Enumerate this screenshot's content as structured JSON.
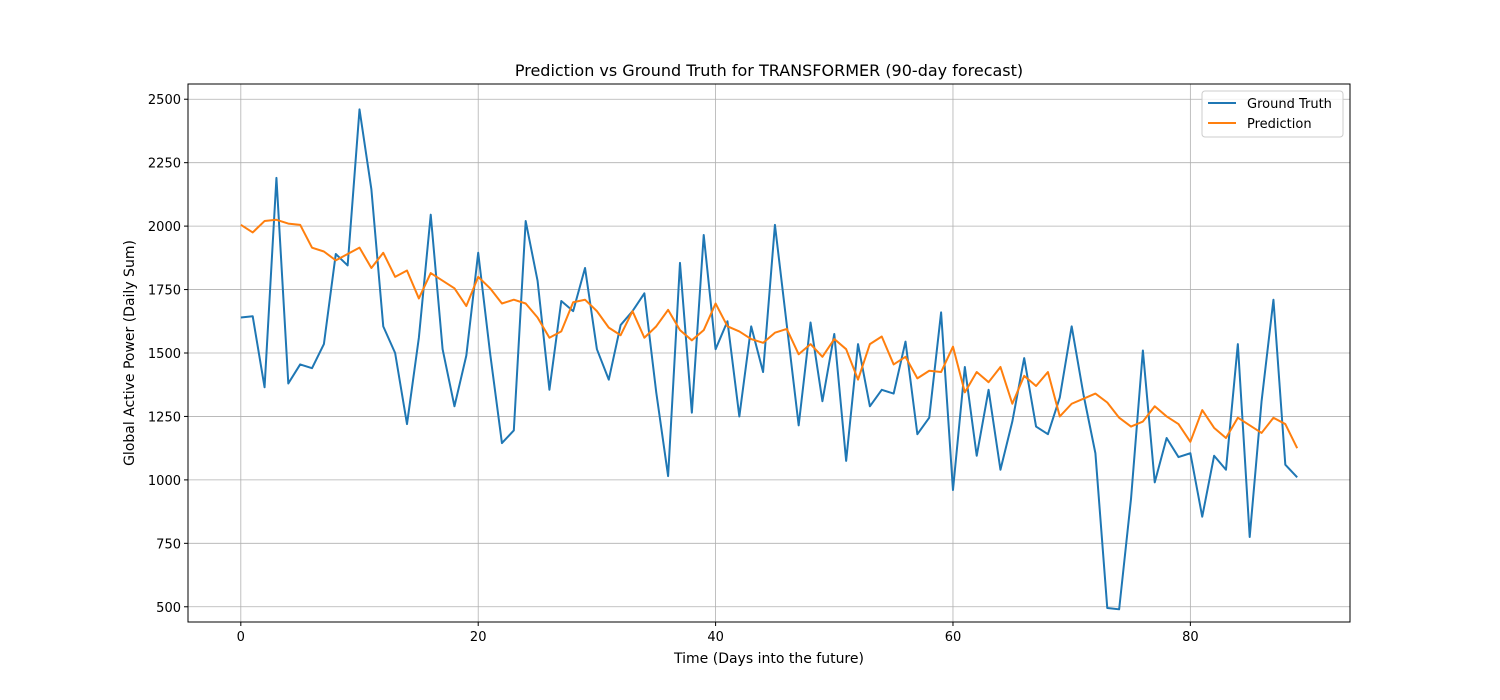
{
  "chart_data": {
    "type": "line",
    "title": "Prediction vs Ground Truth for TRANSFORMER (90-day forecast)",
    "xlabel": "Time (Days into the future)",
    "ylabel": "Global Active Power (Daily Sum)",
    "xlim": [
      -4.45,
      93.45
    ],
    "ylim": [
      440,
      2560
    ],
    "xticks": [
      0,
      20,
      40,
      60,
      80
    ],
    "yticks": [
      500,
      750,
      1000,
      1250,
      1500,
      1750,
      2000,
      2250,
      2500
    ],
    "grid": true,
    "legend_position": "top-right",
    "x": [
      0,
      1,
      2,
      3,
      4,
      5,
      6,
      7,
      8,
      9,
      10,
      11,
      12,
      13,
      14,
      15,
      16,
      17,
      18,
      19,
      20,
      21,
      22,
      23,
      24,
      25,
      26,
      27,
      28,
      29,
      30,
      31,
      32,
      33,
      34,
      35,
      36,
      37,
      38,
      39,
      40,
      41,
      42,
      43,
      44,
      45,
      46,
      47,
      48,
      49,
      50,
      51,
      52,
      53,
      54,
      55,
      56,
      57,
      58,
      59,
      60,
      61,
      62,
      63,
      64,
      65,
      66,
      67,
      68,
      69,
      70,
      71,
      72,
      73,
      74,
      75,
      76,
      77,
      78,
      79,
      80,
      81,
      82,
      83,
      84,
      85,
      86,
      87,
      88,
      89
    ],
    "series": [
      {
        "name": "Ground Truth",
        "color": "#1f77b4",
        "values": [
          1640,
          1645,
          1365,
          2190,
          1380,
          1455,
          1440,
          1535,
          1890,
          1845,
          2460,
          2145,
          1605,
          1500,
          1220,
          1560,
          2045,
          1515,
          1290,
          1490,
          1895,
          1500,
          1145,
          1195,
          2020,
          1785,
          1355,
          1705,
          1665,
          1835,
          1515,
          1395,
          1610,
          1665,
          1735,
          1345,
          1015,
          1855,
          1265,
          1965,
          1515,
          1625,
          1250,
          1605,
          1425,
          2005,
          1610,
          1215,
          1620,
          1310,
          1575,
          1075,
          1535,
          1290,
          1355,
          1340,
          1545,
          1180,
          1245,
          1660,
          960,
          1445,
          1095,
          1355,
          1040,
          1230,
          1480,
          1210,
          1180,
          1325,
          1605,
          1335,
          1105,
          495,
          490,
          925,
          1510,
          990,
          1165,
          1090,
          1105,
          855,
          1095,
          1040,
          1535,
          775,
          1310,
          1710,
          1060,
          1010
        ]
      },
      {
        "name": "Prediction",
        "color": "#ff7f0e",
        "values": [
          2005,
          1975,
          2020,
          2025,
          2010,
          2005,
          1915,
          1900,
          1865,
          1890,
          1915,
          1835,
          1895,
          1800,
          1825,
          1715,
          1815,
          1785,
          1755,
          1685,
          1800,
          1755,
          1695,
          1710,
          1695,
          1640,
          1560,
          1585,
          1700,
          1710,
          1665,
          1600,
          1570,
          1665,
          1560,
          1605,
          1670,
          1590,
          1550,
          1590,
          1695,
          1605,
          1585,
          1555,
          1540,
          1580,
          1595,
          1495,
          1535,
          1485,
          1555,
          1515,
          1395,
          1535,
          1565,
          1455,
          1485,
          1400,
          1430,
          1425,
          1525,
          1345,
          1425,
          1385,
          1445,
          1300,
          1410,
          1370,
          1425,
          1250,
          1300,
          1320,
          1340,
          1305,
          1245,
          1210,
          1230,
          1290,
          1250,
          1220,
          1150,
          1275,
          1205,
          1165,
          1245,
          1215,
          1185,
          1245,
          1220,
          1125
        ]
      }
    ]
  }
}
